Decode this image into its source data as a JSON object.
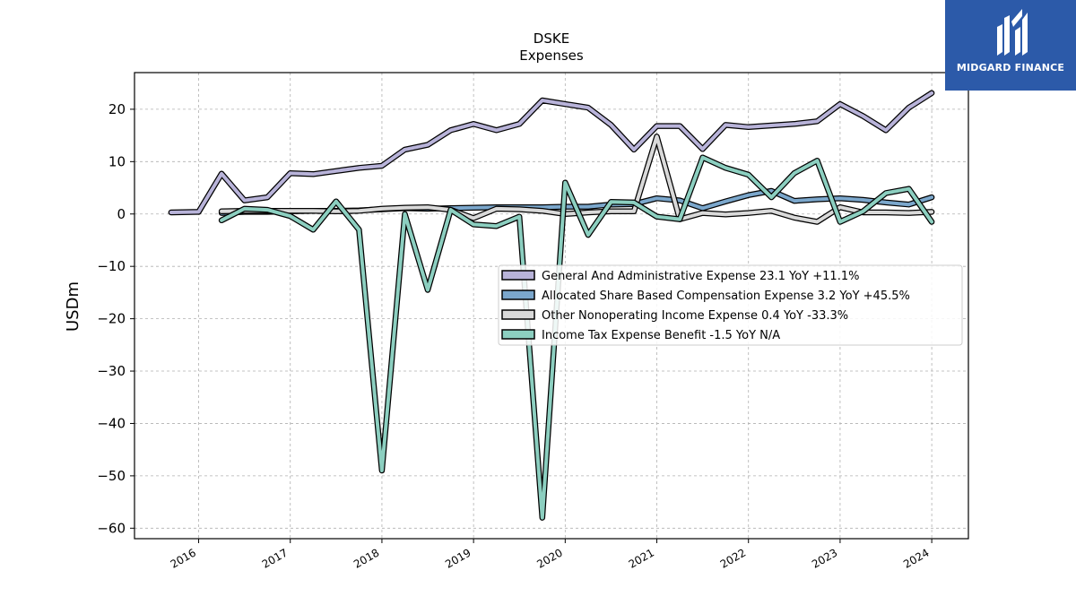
{
  "brand": {
    "name": "MIDGARD FINANCE",
    "color": "#2c5aa9"
  },
  "chart_data": {
    "type": "line",
    "title": "DSKE",
    "subtitle": "Expenses",
    "xlabel": "",
    "ylabel": "USDm",
    "ylim": [
      -62,
      27
    ],
    "xlim": [
      2015.3,
      2024.4
    ],
    "x_ticks": [
      2016,
      2017,
      2018,
      2019,
      2020,
      2021,
      2022,
      2023,
      2024
    ],
    "x_tick_labels": [
      "2016",
      "2017",
      "2018",
      "2019",
      "2020",
      "2021",
      "2022",
      "2023",
      "2024"
    ],
    "y_ticks": [
      20,
      10,
      0,
      -10,
      -20,
      -30,
      -40,
      -50,
      -60
    ],
    "y_tick_labels": [
      "20",
      "10",
      "0",
      "−10",
      "−20",
      "−30",
      "−40",
      "−50",
      "−60"
    ],
    "grid": true,
    "legend_position": "center-right",
    "series": [
      {
        "name": "General And Administrative Expense",
        "legend_label": "General And Administrative Expense  23.1 YoY +11.1%",
        "color": "#b8b3d9",
        "x": [
          2015.7,
          2016.0,
          2016.25,
          2016.5,
          2016.75,
          2017.0,
          2017.25,
          2017.5,
          2017.75,
          2018.0,
          2018.25,
          2018.5,
          2018.75,
          2019.0,
          2019.25,
          2019.5,
          2019.75,
          2020.0,
          2020.25,
          2020.5,
          2020.75,
          2021.0,
          2021.25,
          2021.5,
          2021.75,
          2022.0,
          2022.25,
          2022.5,
          2022.75,
          2023.0,
          2023.25,
          2023.5,
          2023.75,
          2024.0
        ],
        "y": [
          0.3,
          0.4,
          7.7,
          2.6,
          3.2,
          7.8,
          7.6,
          8.2,
          8.8,
          9.2,
          12.3,
          13.2,
          16.0,
          17.2,
          16.0,
          17.2,
          21.7,
          21.0,
          20.3,
          17.0,
          12.3,
          16.8,
          16.8,
          12.4,
          17.0,
          16.6,
          16.9,
          17.2,
          17.7,
          21.0,
          18.7,
          16.0,
          20.3,
          23.1
        ]
      },
      {
        "name": "Allocated Share Based Compensation Expense",
        "legend_label": "Allocated Share Based Compensation Expense  3.2 YoY +45.5%",
        "color": "#7ba7cc",
        "x": [
          2016.25,
          2016.5,
          2016.75,
          2017.0,
          2017.25,
          2017.5,
          2017.75,
          2018.0,
          2018.25,
          2018.5,
          2018.75,
          2019.0,
          2019.25,
          2019.5,
          2019.75,
          2020.0,
          2020.25,
          2020.5,
          2020.75,
          2021.0,
          2021.25,
          2021.5,
          2021.75,
          2022.0,
          2022.25,
          2022.5,
          2022.75,
          2023.0,
          2023.25,
          2023.5,
          2023.75,
          2024.0
        ],
        "y": [
          0.2,
          0.4,
          0.4,
          0.5,
          0.6,
          0.6,
          0.7,
          0.9,
          1.1,
          1.0,
          1.1,
          1.2,
          1.3,
          1.3,
          1.3,
          1.4,
          1.4,
          1.8,
          1.9,
          3.0,
          2.6,
          1.1,
          2.4,
          3.6,
          4.4,
          2.5,
          2.8,
          3.0,
          2.7,
          2.2,
          1.8,
          3.2
        ]
      },
      {
        "name": "Other Nonoperating Income Expense",
        "legend_label": "Other Nonoperating Income Expense  0.4 YoY -33.3%",
        "color": "#d9d9d9",
        "x": [
          2016.25,
          2016.5,
          2016.75,
          2017.0,
          2017.25,
          2017.5,
          2017.75,
          2018.0,
          2018.25,
          2018.5,
          2018.75,
          2019.0,
          2019.25,
          2019.5,
          2019.75,
          2020.0,
          2020.25,
          2020.5,
          2020.75,
          2021.0,
          2021.25,
          2021.5,
          2021.75,
          2022.0,
          2022.25,
          2022.5,
          2022.75,
          2023.0,
          2023.25,
          2023.5,
          2023.75,
          2024.0
        ],
        "y": [
          0.5,
          0.6,
          0.6,
          0.6,
          0.6,
          0.5,
          0.6,
          1.0,
          1.2,
          1.3,
          0.8,
          -0.8,
          1.0,
          0.9,
          0.6,
          0.0,
          0.3,
          0.5,
          0.5,
          14.8,
          -1.0,
          0.2,
          -0.1,
          0.2,
          0.6,
          -0.7,
          -1.5,
          1.3,
          0.3,
          0.3,
          0.2,
          0.4
        ]
      },
      {
        "name": "Income Tax Expense Benefit",
        "legend_label": "Income Tax Expense Benefit  -1.5 YoY N/A",
        "color": "#8ccfc0",
        "x": [
          2016.25,
          2016.5,
          2016.75,
          2017.0,
          2017.25,
          2017.5,
          2017.75,
          2018.0,
          2018.25,
          2018.5,
          2018.75,
          2019.0,
          2019.25,
          2019.5,
          2019.75,
          2020.0,
          2020.25,
          2020.5,
          2020.75,
          2021.0,
          2021.25,
          2021.5,
          2021.75,
          2022.0,
          2022.25,
          2022.5,
          2022.75,
          2023.0,
          2023.25,
          2023.5,
          2023.75,
          2024.0
        ],
        "y": [
          -1.2,
          1.0,
          0.8,
          -0.4,
          -3.0,
          2.4,
          -3.0,
          -49.0,
          0.0,
          -14.5,
          0.8,
          -2.0,
          -2.3,
          -0.5,
          -58.0,
          6.0,
          -4.0,
          2.3,
          2.2,
          -0.5,
          -1.0,
          10.8,
          8.8,
          7.5,
          3.2,
          7.8,
          10.2,
          -1.5,
          0.5,
          4.0,
          4.8,
          -1.5
        ]
      }
    ]
  }
}
